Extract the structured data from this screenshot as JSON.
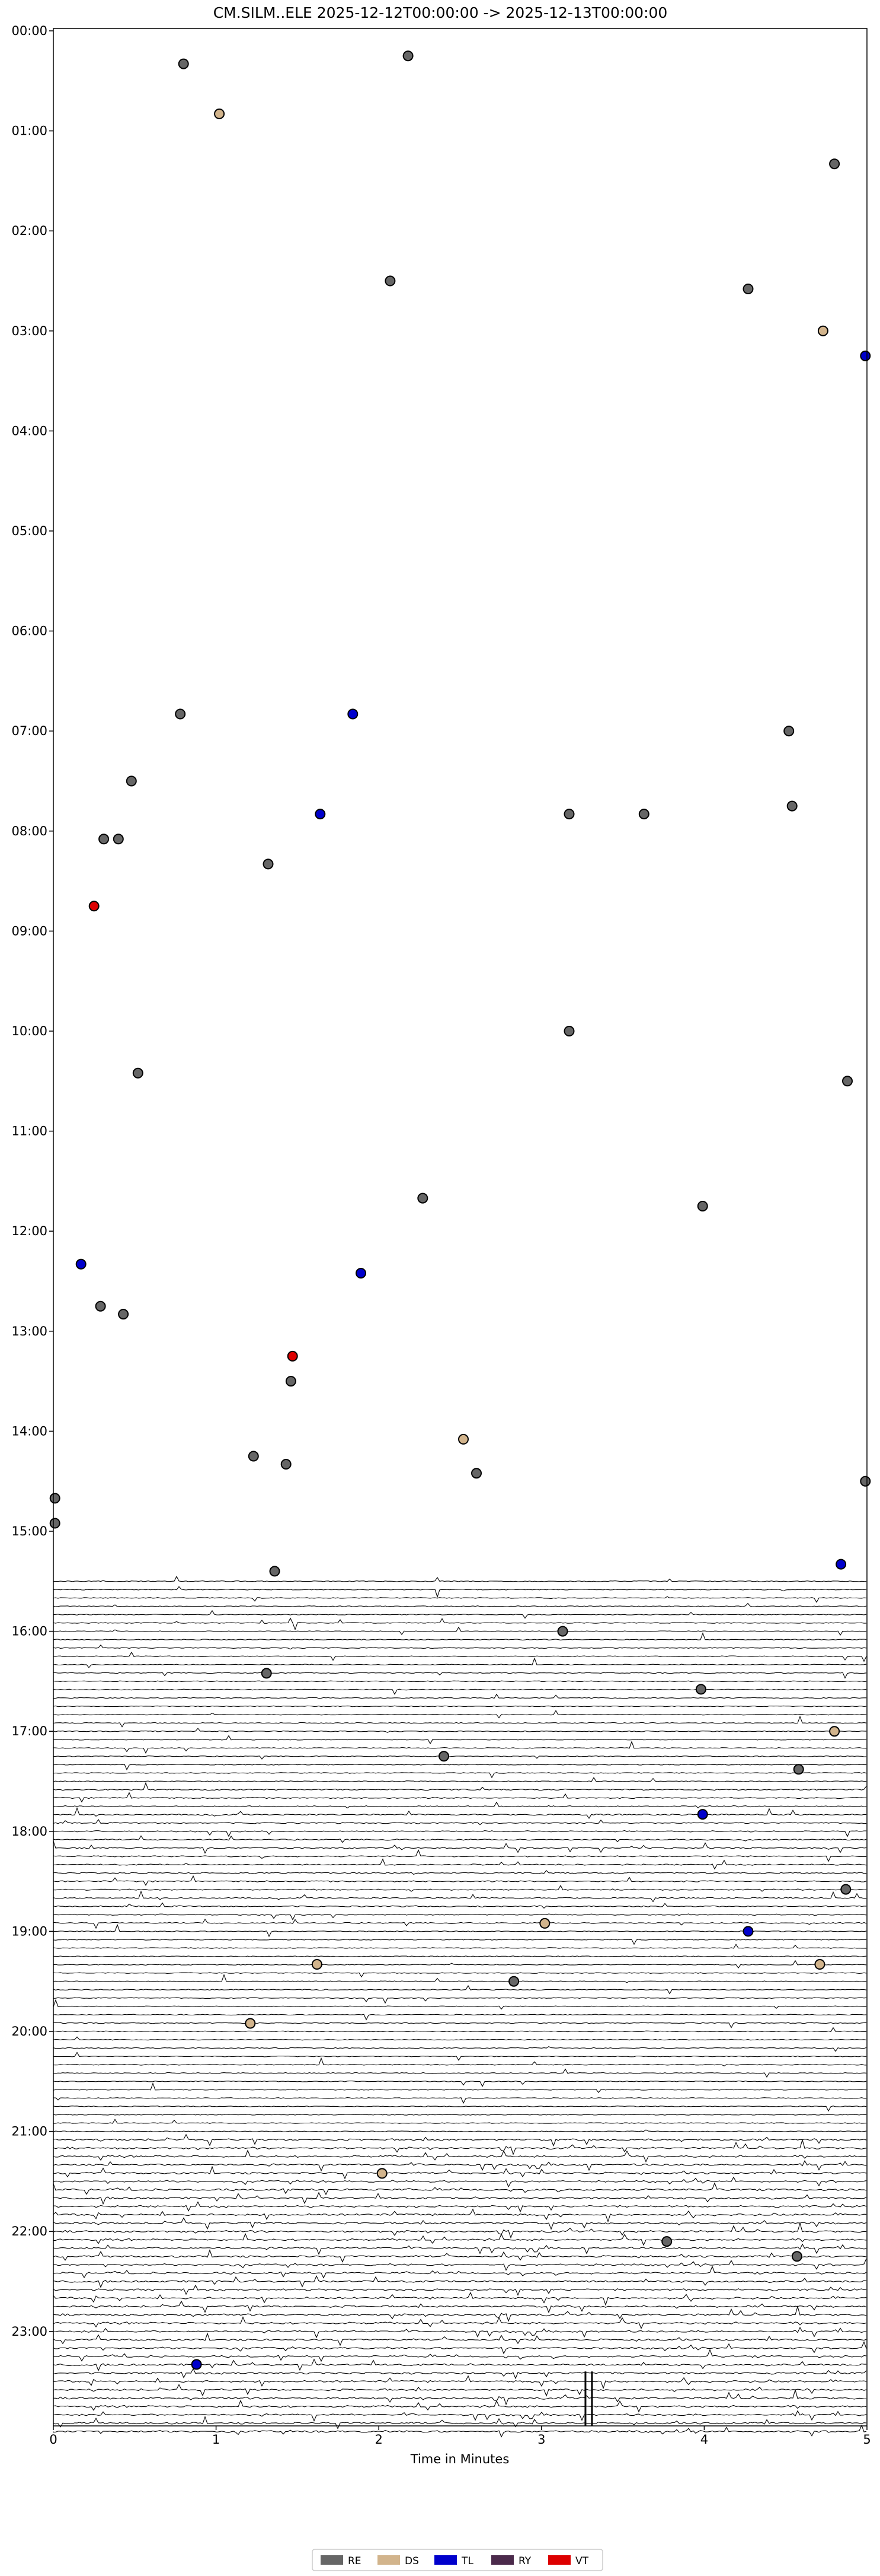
{
  "chart_data": {
    "type": "scatter",
    "title": "CM.SILM..ELE  2025-12-12T00:00:00 -> 2025-12-13T00:00:00",
    "xlabel": "Time in Minutes",
    "ylabel": "",
    "xlim": [
      0,
      5
    ],
    "xticks": [
      0,
      1,
      2,
      3,
      4,
      5
    ],
    "ytick_labels": [
      "00:00",
      "01:00",
      "02:00",
      "03:00",
      "04:00",
      "05:00",
      "06:00",
      "07:00",
      "08:00",
      "09:00",
      "10:00",
      "11:00",
      "12:00",
      "13:00",
      "14:00",
      "15:00",
      "16:00",
      "17:00",
      "18:00",
      "19:00",
      "20:00",
      "21:00",
      "22:00",
      "23:00"
    ],
    "grid": false,
    "legend_position": "bottom-center",
    "colors": {
      "RE": "#666666",
      "DS": "#d2b48c",
      "TL": "#0000cc",
      "RY": "#4b2a4b",
      "VT": "#dd0000"
    },
    "series": [
      {
        "name": "RE",
        "points": [
          [
            0.8,
            0.33
          ],
          [
            2.18,
            0.25
          ],
          [
            4.8,
            1.33
          ],
          [
            2.07,
            2.5
          ],
          [
            4.27,
            2.58
          ],
          [
            0.78,
            6.83
          ],
          [
            4.52,
            7.0
          ],
          [
            0.48,
            7.5
          ],
          [
            4.54,
            7.75
          ],
          [
            3.17,
            7.83
          ],
          [
            3.63,
            7.83
          ],
          [
            0.31,
            8.08
          ],
          [
            0.4,
            8.08
          ],
          [
            1.32,
            8.33
          ],
          [
            3.17,
            10.0
          ],
          [
            0.52,
            10.42
          ],
          [
            4.88,
            10.5
          ],
          [
            2.27,
            11.67
          ],
          [
            3.99,
            11.75
          ],
          [
            0.29,
            12.75
          ],
          [
            0.43,
            12.83
          ],
          [
            1.46,
            13.5
          ],
          [
            1.23,
            14.25
          ],
          [
            1.43,
            14.33
          ],
          [
            2.6,
            14.42
          ],
          [
            0.01,
            14.67
          ],
          [
            4.99,
            14.5
          ],
          [
            0.01,
            14.92
          ],
          [
            3.13,
            16.0
          ],
          [
            1.31,
            16.42
          ],
          [
            3.98,
            16.58
          ],
          [
            2.4,
            17.25
          ],
          [
            2.83,
            19.5
          ],
          [
            1.36,
            15.4
          ],
          [
            4.58,
            17.38
          ],
          [
            4.87,
            18.58
          ],
          [
            3.77,
            22.1
          ],
          [
            4.57,
            22.25
          ]
        ]
      },
      {
        "name": "DS",
        "points": [
          [
            1.02,
            0.83
          ],
          [
            4.73,
            3.0
          ],
          [
            2.52,
            14.08
          ],
          [
            4.8,
            17.0
          ],
          [
            3.02,
            18.92
          ],
          [
            1.62,
            19.33
          ],
          [
            4.71,
            19.33
          ],
          [
            1.21,
            19.92
          ],
          [
            2.02,
            21.42
          ]
        ]
      },
      {
        "name": "TL",
        "points": [
          [
            4.99,
            3.25
          ],
          [
            1.84,
            6.83
          ],
          [
            1.64,
            7.83
          ],
          [
            0.17,
            12.33
          ],
          [
            1.89,
            12.42
          ],
          [
            4.84,
            15.33
          ],
          [
            3.99,
            17.83
          ],
          [
            4.27,
            19.0
          ],
          [
            0.88,
            23.33
          ]
        ]
      },
      {
        "name": "RY",
        "points": []
      },
      {
        "name": "VT",
        "points": [
          [
            0.25,
            8.75
          ],
          [
            1.47,
            13.25
          ]
        ]
      }
    ],
    "waveform_hours": {
      "start": 15.5,
      "end": 24,
      "tall_spike_x": [
        3.27,
        3.31
      ]
    }
  }
}
